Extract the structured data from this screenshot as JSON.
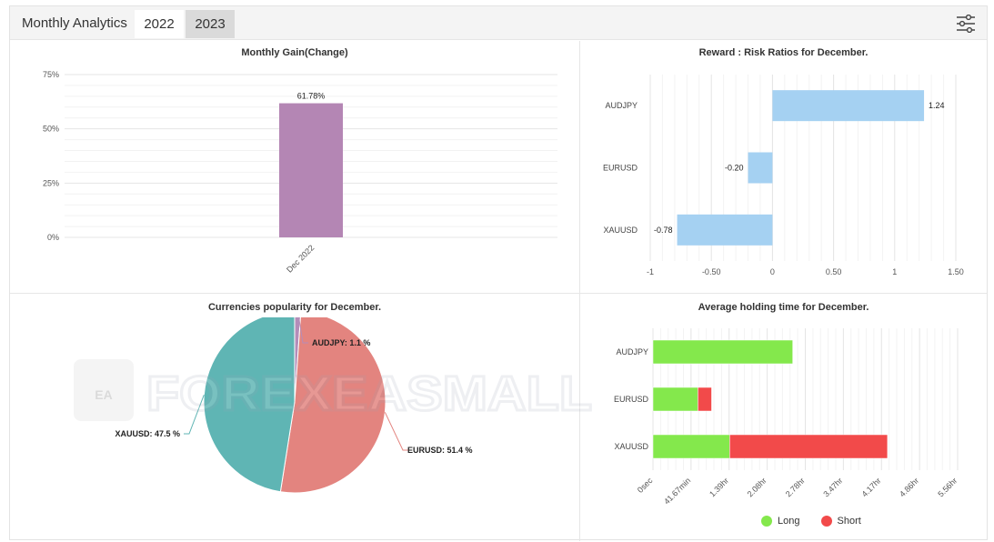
{
  "header": {
    "title": "Monthly Analytics",
    "tabs": [
      {
        "label": "2022"
      },
      {
        "label": "2023"
      }
    ],
    "active_tab": "2022",
    "settings_icon": "sliders-icon"
  },
  "watermark": {
    "text": "FOREXEASMALL",
    "badge_text": "EA"
  },
  "colors": {
    "gain_bar": "#b486b4",
    "rr_bar": "#a5d1f2",
    "pie_eur": "#e3847f",
    "pie_xau": "#5fb5b4",
    "pie_aud": "#b48db9",
    "long": "#84e84c",
    "short": "#f24a4a"
  },
  "chart_data": [
    {
      "id": "gain",
      "type": "bar",
      "title": "Monthly Gain(Change)",
      "categories": [
        "Dec 2022"
      ],
      "values": [
        61.78
      ],
      "data_labels": [
        "61.78%"
      ],
      "ylim": [
        0,
        75
      ],
      "yticks": [
        0,
        25,
        50,
        75
      ],
      "ytick_labels": [
        "0%",
        "25%",
        "50%",
        "75%"
      ],
      "grid": true
    },
    {
      "id": "rr",
      "type": "bar",
      "orientation": "horizontal",
      "title": "Reward : Risk Ratios for December.",
      "categories": [
        "AUDJPY",
        "EURUSD",
        "XAUUSD"
      ],
      "values": [
        1.24,
        -0.2,
        -0.78
      ],
      "data_labels": [
        "1.24",
        "-0.20",
        "-0.78"
      ],
      "xlim": [
        -1,
        1.5
      ],
      "xticks": [
        -1,
        -0.5,
        0,
        0.5,
        1,
        1.5
      ],
      "xtick_labels": [
        "-1",
        "-0.50",
        "0",
        "0.50",
        "1",
        "1.50"
      ],
      "grid": true
    },
    {
      "id": "pop",
      "type": "pie",
      "title": "Currencies popularity for December.",
      "slices": [
        {
          "name": "AUDJPY",
          "value": 1.1,
          "label": "AUDJPY: 1.1 %"
        },
        {
          "name": "EURUSD",
          "value": 51.4,
          "label": "EURUSD: 51.4 %"
        },
        {
          "name": "XAUUSD",
          "value": 47.5,
          "label": "XAUUSD: 47.5 %"
        }
      ]
    },
    {
      "id": "hold",
      "type": "bar",
      "orientation": "horizontal",
      "stacked": true,
      "title": "Average holding time for December.",
      "categories": [
        "AUDJPY",
        "EURUSD",
        "XAUUSD"
      ],
      "series": [
        {
          "name": "Long",
          "values": [
            2.55,
            0.82,
            1.4
          ]
        },
        {
          "name": "Short",
          "values": [
            0,
            0.25,
            2.88
          ]
        }
      ],
      "xlim": [
        0,
        5.56
      ],
      "xticks": [
        0,
        0.695,
        1.39,
        2.08,
        2.78,
        3.47,
        4.17,
        4.86,
        5.56
      ],
      "xtick_labels": [
        "0sec",
        "41.67min",
        "1.39hr",
        "2.08hr",
        "2.78hr",
        "3.47hr",
        "4.17hr",
        "4.86hr",
        "5.56hr"
      ],
      "legend_position": "bottom",
      "grid": true
    }
  ]
}
